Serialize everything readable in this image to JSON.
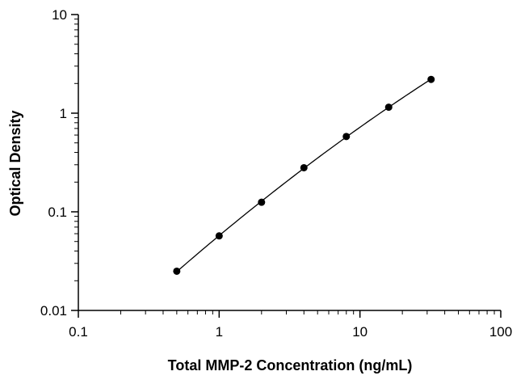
{
  "chart_data": {
    "type": "scatter",
    "title": "",
    "xlabel": "Total MMP-2 Concentration (ng/mL)",
    "ylabel": "Optical Density",
    "xscale": "log",
    "yscale": "log",
    "xlim": [
      0.1,
      100
    ],
    "ylim": [
      0.01,
      10
    ],
    "grid": false,
    "legend": "none",
    "x_ticks": [
      {
        "value": 0.1,
        "label": "0.1"
      },
      {
        "value": 1,
        "label": "1"
      },
      {
        "value": 10,
        "label": "10"
      },
      {
        "value": 100,
        "label": "100"
      }
    ],
    "y_ticks": [
      {
        "value": 0.01,
        "label": "0.01"
      },
      {
        "value": 0.1,
        "label": "0.1"
      },
      {
        "value": 1,
        "label": "1"
      },
      {
        "value": 10,
        "label": "10"
      }
    ],
    "series": [
      {
        "x": [
          0.5,
          1,
          2,
          4,
          8,
          16,
          32
        ],
        "y": [
          0.025,
          0.057,
          0.125,
          0.28,
          0.58,
          1.15,
          2.2
        ],
        "marker": "circle",
        "color": "#000000",
        "fit_line": true
      }
    ]
  }
}
